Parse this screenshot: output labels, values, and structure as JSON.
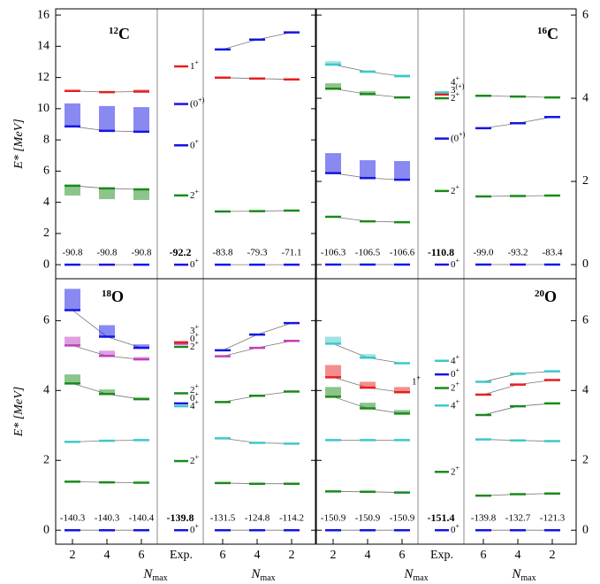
{
  "chart_data": [
    {
      "type": "level-scheme",
      "mass": "12",
      "symbol": "C",
      "axis": "left",
      "calc": [
        {
          "color": "#1414e6",
          "values": [
            0,
            0,
            0
          ]
        },
        {
          "color": "#1a8a1a",
          "values": [
            5.06,
            4.89,
            4.83
          ],
          "band": [
            4.43,
            4.2,
            4.15
          ]
        },
        {
          "color": "#1414e6",
          "values": [
            8.86,
            8.58,
            8.52
          ],
          "band": [
            10.34,
            10.17,
            10.1
          ]
        },
        {
          "color": "#e81e1e",
          "values": [
            11.14,
            11.06,
            11.1
          ],
          "band": [
            11.2,
            11.12,
            11.22
          ]
        }
      ],
      "exp": [
        {
          "color": "#1414e6",
          "value": 0,
          "label": "0+"
        },
        {
          "color": "#1a8a1a",
          "value": 4.44,
          "label": "2+"
        },
        {
          "color": "#1414e6",
          "value": 7.65,
          "label": "0+"
        },
        {
          "color": "#1414e6",
          "value": 10.3,
          "label": "(0+)"
        },
        {
          "color": "#e81e1e",
          "value": 12.71,
          "label": "1+"
        }
      ],
      "ncsm": [
        {
          "color": "#1414e6",
          "values": [
            0,
            0,
            0
          ]
        },
        {
          "color": "#1a8a1a",
          "values": [
            3.41,
            3.43,
            3.47
          ]
        },
        {
          "color": "#e81e1e",
          "values": [
            11.99,
            11.93,
            11.88
          ]
        },
        {
          "color": "#1414e6",
          "values": [
            13.8,
            14.43,
            14.89
          ]
        }
      ],
      "binding_calc": [
        "-90.8",
        "-90.8",
        "-90.8"
      ],
      "binding_exp": "-92.2",
      "binding_ncsm": [
        "-83.8",
        "-79.3",
        "-71.1"
      ]
    },
    {
      "type": "level-scheme",
      "mass": "16",
      "symbol": "C",
      "axis": "right",
      "calc": [
        {
          "color": "#1414e6",
          "values": [
            0,
            0,
            0
          ]
        },
        {
          "color": "#1a8a1a",
          "values": [
            1.15,
            1.04,
            1.02
          ]
        },
        {
          "color": "#1414e6",
          "values": [
            2.2,
            2.08,
            2.04
          ],
          "band": [
            2.68,
            2.51,
            2.49
          ]
        },
        {
          "color": "#1a8a1a",
          "values": [
            4.23,
            4.1,
            4.02
          ],
          "band": [
            4.36,
            4.17,
            4.04
          ]
        },
        {
          "color": "#3cc8c8",
          "values": [
            4.81,
            4.64,
            4.53
          ],
          "band": [
            4.89,
            4.67,
            4.57
          ]
        }
      ],
      "exp": [
        {
          "color": "#1414e6",
          "value": 0,
          "label": "0+"
        },
        {
          "color": "#1a8a1a",
          "value": 1.77,
          "label": "2+"
        },
        {
          "color": "#1414e6",
          "value": 3.03,
          "label": "(0+)"
        },
        {
          "color": "#1a8a1a",
          "value": 4.0,
          "label": "2+"
        },
        {
          "color": "#e81e1e",
          "value": 4.09,
          "label": "3(+)"
        },
        {
          "color": "#3cc8c8",
          "value": 4.14,
          "label": "4+"
        }
      ],
      "ncsm": [
        {
          "color": "#1414e6",
          "values": [
            0,
            0,
            0
          ]
        },
        {
          "color": "#1a8a1a",
          "values": [
            1.64,
            1.65,
            1.66
          ]
        },
        {
          "color": "#1414e6",
          "values": [
            3.28,
            3.4,
            3.55
          ]
        },
        {
          "color": "#1a8a1a",
          "values": [
            4.06,
            4.04,
            4.02
          ]
        }
      ],
      "binding_calc": [
        "-106.3",
        "-106.5",
        "-106.6"
      ],
      "binding_exp": "-110.8",
      "binding_ncsm": [
        "-99.0",
        "-93.2",
        "-83.4"
      ]
    },
    {
      "type": "level-scheme",
      "mass": "18",
      "symbol": "O",
      "axis": "left",
      "calc": [
        {
          "color": "#1414e6",
          "values": [
            0,
            0,
            0
          ]
        },
        {
          "color": "#1a8a1a",
          "values": [
            1.39,
            1.37,
            1.36
          ]
        },
        {
          "color": "#3cc8c8",
          "values": [
            2.53,
            2.56,
            2.58
          ]
        },
        {
          "color": "#1a8a1a",
          "values": [
            4.2,
            3.9,
            3.75
          ],
          "band": [
            4.46,
            4.03,
            3.8
          ]
        },
        {
          "color": "#c040c0",
          "values": [
            5.29,
            4.99,
            4.89
          ],
          "band": [
            5.54,
            5.14,
            4.96
          ]
        },
        {
          "color": "#1414e6",
          "values": [
            6.3,
            5.54,
            5.22
          ],
          "band": [
            6.91,
            5.87,
            5.32
          ]
        }
      ],
      "exp": [
        {
          "color": "#1414e6",
          "value": 0,
          "label": "0+"
        },
        {
          "color": "#1a8a1a",
          "value": 1.98,
          "label": "2+"
        },
        {
          "color": "#3cc8c8",
          "value": 3.55,
          "label": "4+"
        },
        {
          "color": "#1414e6",
          "value": 3.63,
          "label": "0+"
        },
        {
          "color": "#1a8a1a",
          "value": 3.92,
          "label": "2+"
        },
        {
          "color": "#1a8a1a",
          "value": 5.25,
          "label": "2+"
        },
        {
          "color": "#c040c0",
          "value": 5.34,
          "label": "0+"
        },
        {
          "color": "#e81e1e",
          "value": 5.38,
          "label": "3+"
        }
      ],
      "ncsm": [
        {
          "color": "#1414e6",
          "values": [
            0,
            0,
            0
          ]
        },
        {
          "color": "#1a8a1a",
          "values": [
            1.35,
            1.33,
            1.33
          ]
        },
        {
          "color": "#3cc8c8",
          "values": [
            2.63,
            2.5,
            2.48
          ]
        },
        {
          "color": "#1a8a1a",
          "values": [
            3.67,
            3.85,
            3.97
          ]
        },
        {
          "color": "#c040c0",
          "values": [
            4.98,
            5.22,
            5.42
          ]
        },
        {
          "color": "#1414e6",
          "values": [
            5.15,
            5.6,
            5.93
          ]
        }
      ],
      "binding_calc": [
        "-140.3",
        "-140.3",
        "-140.4"
      ],
      "binding_exp": "-139.8",
      "binding_ncsm": [
        "-131.5",
        "-124.8",
        "-114.2"
      ]
    },
    {
      "type": "level-scheme",
      "mass": "20",
      "symbol": "O",
      "axis": "left",
      "calc": [
        {
          "color": "#1414e6",
          "values": [
            0,
            0,
            0
          ]
        },
        {
          "color": "#1a8a1a",
          "values": [
            1.11,
            1.1,
            1.08
          ]
        },
        {
          "color": "#3cc8c8",
          "values": [
            2.58,
            2.58,
            2.58
          ]
        },
        {
          "color": "#1a8a1a",
          "values": [
            3.82,
            3.49,
            3.34
          ],
          "band": [
            4.1,
            3.65,
            3.44
          ]
        },
        {
          "color": "#e81e1e",
          "values": [
            4.38,
            4.08,
            3.95
          ],
          "band": [
            4.73,
            4.25,
            4.1
          ]
        },
        {
          "color": "#3cc8c8",
          "values": [
            5.34,
            4.94,
            4.78
          ],
          "band": [
            5.54,
            5.04,
            4.8
          ]
        }
      ],
      "annotation": "1+",
      "exp": [
        {
          "color": "#1414e6",
          "value": 0,
          "label": "0+"
        },
        {
          "color": "#1a8a1a",
          "value": 1.67,
          "label": "2+"
        },
        {
          "color": "#3cc8c8",
          "value": 3.57,
          "label": "4+"
        },
        {
          "color": "#1a8a1a",
          "value": 4.07,
          "label": "2+"
        },
        {
          "color": "#1414e6",
          "value": 4.46,
          "label": "0+"
        },
        {
          "color": "#3cc8c8",
          "value": 4.85,
          "label": "4+"
        }
      ],
      "ncsm": [
        {
          "color": "#1414e6",
          "values": [
            0,
            0,
            0
          ]
        },
        {
          "color": "#1a8a1a",
          "values": [
            0.99,
            1.03,
            1.05
          ]
        },
        {
          "color": "#3cc8c8",
          "values": [
            2.6,
            2.57,
            2.55
          ]
        },
        {
          "color": "#1a8a1a",
          "values": [
            3.3,
            3.55,
            3.63
          ]
        },
        {
          "color": "#e81e1e",
          "values": [
            3.88,
            4.17,
            4.3
          ]
        },
        {
          "color": "#3cc8c8",
          "values": [
            4.25,
            4.48,
            4.55
          ]
        }
      ],
      "binding_calc": [
        "-150.9",
        "-150.9",
        "-150.9"
      ],
      "binding_exp": "-151.4",
      "binding_ncsm": [
        "-139.8",
        "-132.7",
        "-121.3"
      ]
    }
  ],
  "axes": [
    {
      "left": {
        "lim": [
          -0.9,
          16.4
        ],
        "ticks": [
          0,
          2,
          4,
          6,
          8,
          10,
          12,
          14,
          16
        ]
      },
      "right": {
        "lim": [
          -0.34,
          6.15
        ],
        "ticks": [
          0,
          2,
          4,
          6
        ]
      }
    },
    {
      "left": {
        "lim": [
          -0.4,
          7.2
        ],
        "ticks": [
          0,
          2,
          4,
          6
        ]
      },
      "right": {
        "lim": [
          -0.4,
          7.2
        ],
        "ticks": [
          0,
          2,
          4,
          6
        ]
      }
    }
  ],
  "y_label": "E* [MeV]",
  "x_calc": [
    "2",
    "4",
    "6"
  ],
  "x_exp": "Exp.",
  "x_ncsm": [
    "6",
    "4",
    "2"
  ],
  "x_label": {
    "symbol": "N",
    "subscript": "max"
  }
}
